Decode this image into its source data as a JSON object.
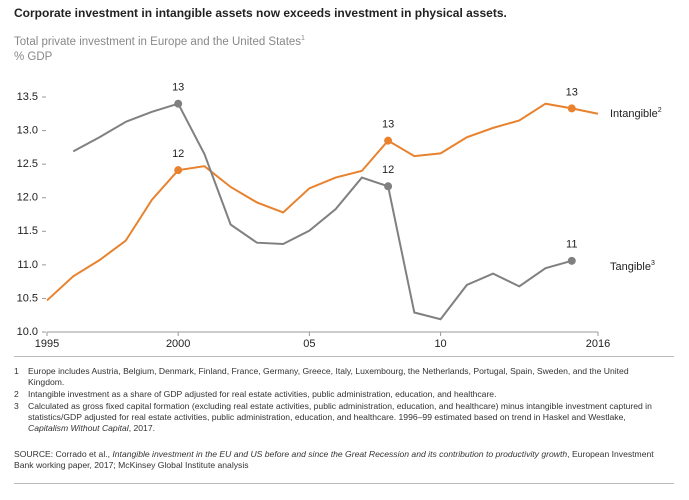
{
  "chart_data": {
    "type": "line",
    "title": "Corporate investment in intangible assets now exceeds investment in physical assets.",
    "subtitle": "Total private investment in Europe and the United States",
    "subtitle_superscript": "1",
    "y_label": "% GDP",
    "x": [
      1995,
      1996,
      1997,
      1998,
      1999,
      2000,
      2001,
      2002,
      2003,
      2004,
      2005,
      2006,
      2007,
      2008,
      2009,
      2010,
      2011,
      2012,
      2013,
      2014,
      2015,
      2016
    ],
    "series": [
      {
        "name": "Intangible",
        "name_superscript": "2",
        "color": "#e8822e",
        "values": [
          10.47,
          10.83,
          11.07,
          11.36,
          11.97,
          12.41,
          12.47,
          12.16,
          11.93,
          11.78,
          12.14,
          12.3,
          12.4,
          12.85,
          12.62,
          12.66,
          12.9,
          13.04,
          13.15,
          13.4,
          13.33,
          13.25
        ],
        "value_labels": [
          null,
          null,
          null,
          null,
          null,
          "12",
          null,
          null,
          null,
          null,
          null,
          null,
          null,
          "13",
          null,
          null,
          null,
          null,
          null,
          null,
          "13",
          null
        ]
      },
      {
        "name": "Tangible",
        "name_superscript": "3",
        "color": "#808080",
        "values": [
          null,
          12.69,
          12.9,
          13.13,
          13.28,
          13.4,
          12.65,
          11.6,
          11.33,
          11.31,
          11.51,
          11.83,
          12.3,
          12.17,
          10.29,
          10.19,
          10.7,
          10.87,
          10.68,
          10.95,
          11.06,
          null
        ],
        "value_labels": [
          null,
          null,
          null,
          null,
          null,
          "13",
          null,
          null,
          null,
          null,
          null,
          null,
          null,
          "12",
          null,
          null,
          null,
          null,
          null,
          null,
          "11",
          null
        ]
      }
    ],
    "xlim": [
      1995,
      2016
    ],
    "xticks": [
      1995,
      2000,
      {
        "value": 2005,
        "label": "05"
      },
      {
        "value": 2010,
        "label": "10"
      },
      2016
    ],
    "ylim": [
      10,
      13.5
    ],
    "yticks": [
      {
        "value": 10,
        "label": "10.0"
      },
      10.5,
      {
        "value": 11,
        "label": "11.0"
      },
      11.5,
      {
        "value": 12,
        "label": "12.0"
      },
      12.5,
      {
        "value": 13,
        "label": "13.0"
      },
      13.5
    ],
    "grid": false
  },
  "footnotes": [
    {
      "number": "1",
      "parts": [
        {
          "text": "Europe includes Austria, Belgium, Denmark, Finland, France, Germany, Greece, Italy, Luxembourg, the Netherlands, Portugal, Spain, Sweden, and the United Kingdom."
        }
      ]
    },
    {
      "number": "2",
      "parts": [
        {
          "text": "Intangible investment as a share of GDP adjusted for real estate activities, public administration, education, and healthcare."
        }
      ]
    },
    {
      "number": "3",
      "parts": [
        {
          "text": "Calculated as gross fixed capital formation (excluding real estate activities, public administration, education, and healthcare) minus intangible investment captured in statistics/GDP adjusted for real estate activities, public administration, education, and healthcare. 1996–99 estimated based on trend in Haskel and Westlake, "
        },
        {
          "text": "Capitalism Without Capital",
          "italic": true
        },
        {
          "text": ", 2017."
        }
      ]
    }
  ],
  "source": {
    "label": "SOURCE:",
    "parts": [
      {
        "text": "Corrado et al., "
      },
      {
        "text": "Intangible investment in the EU and US before and since the Great Recession and its contribution to productivity growth",
        "italic": true
      },
      {
        "text": ", European Investment Bank working paper, 2017; McKinsey Global Institute analysis"
      }
    ]
  }
}
